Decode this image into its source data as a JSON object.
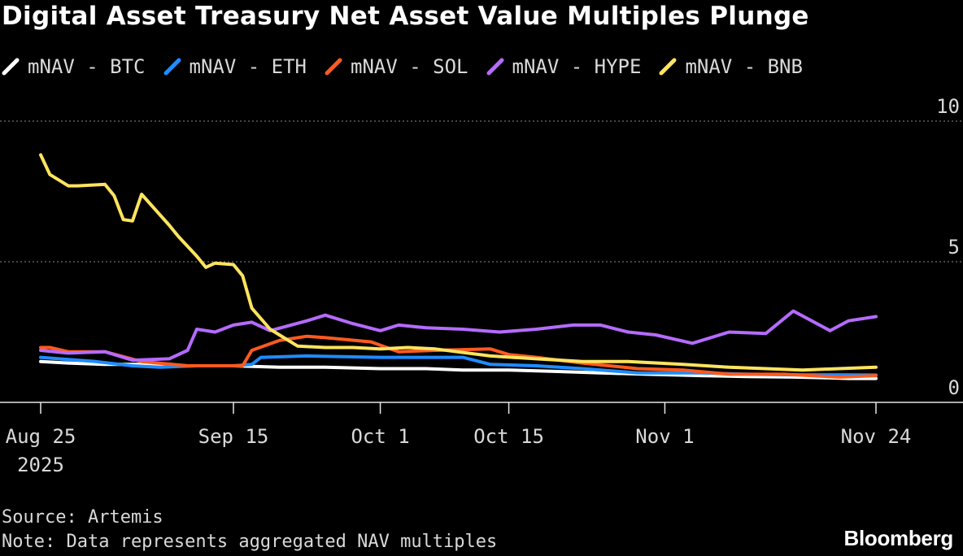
{
  "title": "Digital Asset Treasury Net Asset Value Multiples Plunge",
  "source": "Source: Artemis",
  "note": "Note: Data represents aggregated NAV multiples",
  "brand": "Bloomberg",
  "chart_data": {
    "type": "line",
    "title": "Digital Asset Treasury Net Asset Value Multiples Plunge",
    "ylim": [
      0,
      10
    ],
    "y_ticks": [
      0,
      5,
      10
    ],
    "x_tick_labels": [
      {
        "x": "2025-08-25",
        "label": "Aug 25",
        "sublabel": "2025"
      },
      {
        "x": "2025-09-15",
        "label": "Sep 15"
      },
      {
        "x": "2025-10-01",
        "label": "Oct 1"
      },
      {
        "x": "2025-10-15",
        "label": "Oct 15"
      },
      {
        "x": "2025-11-01",
        "label": "Nov 1"
      },
      {
        "x": "2025-11-24",
        "label": "Nov 24"
      }
    ],
    "grid": "horizontal dotted",
    "legend_position": "top-left",
    "series": [
      {
        "name": "mNAV - BTC",
        "color": "#ffffff",
        "points": [
          [
            "2025-08-25",
            1.45
          ],
          [
            "2025-08-28",
            1.4
          ],
          [
            "2025-09-01",
            1.35
          ],
          [
            "2025-09-05",
            1.35
          ],
          [
            "2025-09-10",
            1.3
          ],
          [
            "2025-09-15",
            1.3
          ],
          [
            "2025-09-20",
            1.25
          ],
          [
            "2025-09-25",
            1.25
          ],
          [
            "2025-10-01",
            1.2
          ],
          [
            "2025-10-06",
            1.2
          ],
          [
            "2025-10-10",
            1.15
          ],
          [
            "2025-10-15",
            1.15
          ],
          [
            "2025-10-20",
            1.1
          ],
          [
            "2025-10-25",
            1.05
          ],
          [
            "2025-10-30",
            1.0
          ],
          [
            "2025-11-05",
            0.95
          ],
          [
            "2025-11-10",
            0.92
          ],
          [
            "2025-11-15",
            0.9
          ],
          [
            "2025-11-18",
            0.88
          ],
          [
            "2025-11-21",
            0.85
          ],
          [
            "2025-11-24",
            0.85
          ]
        ]
      },
      {
        "name": "mNAV - ETH",
        "color": "#1f8cff",
        "points": [
          [
            "2025-08-25",
            1.6
          ],
          [
            "2025-08-27",
            1.55
          ],
          [
            "2025-08-31",
            1.45
          ],
          [
            "2025-09-04",
            1.3
          ],
          [
            "2025-09-07",
            1.25
          ],
          [
            "2025-09-11",
            1.3
          ],
          [
            "2025-09-15",
            1.3
          ],
          [
            "2025-09-17",
            1.35
          ],
          [
            "2025-09-18",
            1.6
          ],
          [
            "2025-09-23",
            1.65
          ],
          [
            "2025-10-01",
            1.6
          ],
          [
            "2025-10-07",
            1.6
          ],
          [
            "2025-10-10",
            1.6
          ],
          [
            "2025-10-13",
            1.35
          ],
          [
            "2025-10-18",
            1.3
          ],
          [
            "2025-10-23",
            1.2
          ],
          [
            "2025-10-29",
            1.05
          ],
          [
            "2025-11-05",
            1.05
          ],
          [
            "2025-11-10",
            1.0
          ],
          [
            "2025-11-15",
            0.98
          ],
          [
            "2025-11-20",
            0.98
          ],
          [
            "2025-11-24",
            0.97
          ]
        ]
      },
      {
        "name": "mNAV - SOL",
        "color": "#ff5a1f",
        "points": [
          [
            "2025-08-25",
            1.95
          ],
          [
            "2025-08-26",
            1.95
          ],
          [
            "2025-08-28",
            1.8
          ],
          [
            "2025-09-01",
            1.8
          ],
          [
            "2025-09-05",
            1.45
          ],
          [
            "2025-09-10",
            1.3
          ],
          [
            "2025-09-14",
            1.3
          ],
          [
            "2025-09-16",
            1.3
          ],
          [
            "2025-09-17",
            1.85
          ],
          [
            "2025-09-20",
            2.2
          ],
          [
            "2025-09-23",
            2.35
          ],
          [
            "2025-09-25",
            2.3
          ],
          [
            "2025-09-30",
            2.15
          ],
          [
            "2025-10-03",
            1.8
          ],
          [
            "2025-10-07",
            1.85
          ],
          [
            "2025-10-13",
            1.9
          ],
          [
            "2025-10-15",
            1.7
          ],
          [
            "2025-10-18",
            1.6
          ],
          [
            "2025-10-23",
            1.4
          ],
          [
            "2025-10-29",
            1.2
          ],
          [
            "2025-11-03",
            1.15
          ],
          [
            "2025-11-08",
            1.0
          ],
          [
            "2025-11-14",
            1.0
          ],
          [
            "2025-11-20",
            0.9
          ],
          [
            "2025-11-24",
            0.95
          ]
        ]
      },
      {
        "name": "mNAV - HYPE",
        "color": "#b56bff",
        "points": [
          [
            "2025-08-25",
            1.85
          ],
          [
            "2025-08-28",
            1.75
          ],
          [
            "2025-09-01",
            1.8
          ],
          [
            "2025-09-04",
            1.5
          ],
          [
            "2025-09-08",
            1.55
          ],
          [
            "2025-09-10",
            1.85
          ],
          [
            "2025-09-11",
            2.6
          ],
          [
            "2025-09-13",
            2.5
          ],
          [
            "2025-09-15",
            2.75
          ],
          [
            "2025-09-17",
            2.85
          ],
          [
            "2025-09-19",
            2.55
          ],
          [
            "2025-09-23",
            2.9
          ],
          [
            "2025-09-25",
            3.1
          ],
          [
            "2025-09-28",
            2.8
          ],
          [
            "2025-10-01",
            2.55
          ],
          [
            "2025-10-03",
            2.75
          ],
          [
            "2025-10-06",
            2.65
          ],
          [
            "2025-10-10",
            2.6
          ],
          [
            "2025-10-14",
            2.5
          ],
          [
            "2025-10-18",
            2.6
          ],
          [
            "2025-10-22",
            2.75
          ],
          [
            "2025-10-25",
            2.75
          ],
          [
            "2025-10-28",
            2.5
          ],
          [
            "2025-10-31",
            2.4
          ],
          [
            "2025-11-04",
            2.1
          ],
          [
            "2025-11-08",
            2.5
          ],
          [
            "2025-11-12",
            2.45
          ],
          [
            "2025-11-15",
            3.25
          ],
          [
            "2025-11-19",
            2.55
          ],
          [
            "2025-11-21",
            2.9
          ],
          [
            "2025-11-24",
            3.05
          ]
        ]
      },
      {
        "name": "mNAV - BNB",
        "color": "#ffe45e",
        "points": [
          [
            "2025-08-25",
            8.8
          ],
          [
            "2025-08-26",
            8.1
          ],
          [
            "2025-08-28",
            7.7
          ],
          [
            "2025-08-29",
            7.7
          ],
          [
            "2025-09-01",
            7.75
          ],
          [
            "2025-09-02",
            7.35
          ],
          [
            "2025-09-03",
            6.5
          ],
          [
            "2025-09-04",
            6.45
          ],
          [
            "2025-09-05",
            7.4
          ],
          [
            "2025-09-08",
            6.3
          ],
          [
            "2025-09-09",
            5.9
          ],
          [
            "2025-09-11",
            5.2
          ],
          [
            "2025-09-12",
            4.8
          ],
          [
            "2025-09-13",
            4.95
          ],
          [
            "2025-09-15",
            4.9
          ],
          [
            "2025-09-16",
            4.5
          ],
          [
            "2025-09-17",
            3.35
          ],
          [
            "2025-09-19",
            2.6
          ],
          [
            "2025-09-22",
            2.0
          ],
          [
            "2025-09-25",
            1.95
          ],
          [
            "2025-09-28",
            1.95
          ],
          [
            "2025-10-01",
            1.9
          ],
          [
            "2025-10-04",
            1.95
          ],
          [
            "2025-10-07",
            1.9
          ],
          [
            "2025-10-13",
            1.65
          ],
          [
            "2025-10-18",
            1.55
          ],
          [
            "2025-10-23",
            1.45
          ],
          [
            "2025-10-28",
            1.45
          ],
          [
            "2025-11-03",
            1.35
          ],
          [
            "2025-11-08",
            1.25
          ],
          [
            "2025-11-12",
            1.2
          ],
          [
            "2025-11-16",
            1.15
          ],
          [
            "2025-11-20",
            1.2
          ],
          [
            "2025-11-24",
            1.25
          ]
        ]
      }
    ]
  }
}
